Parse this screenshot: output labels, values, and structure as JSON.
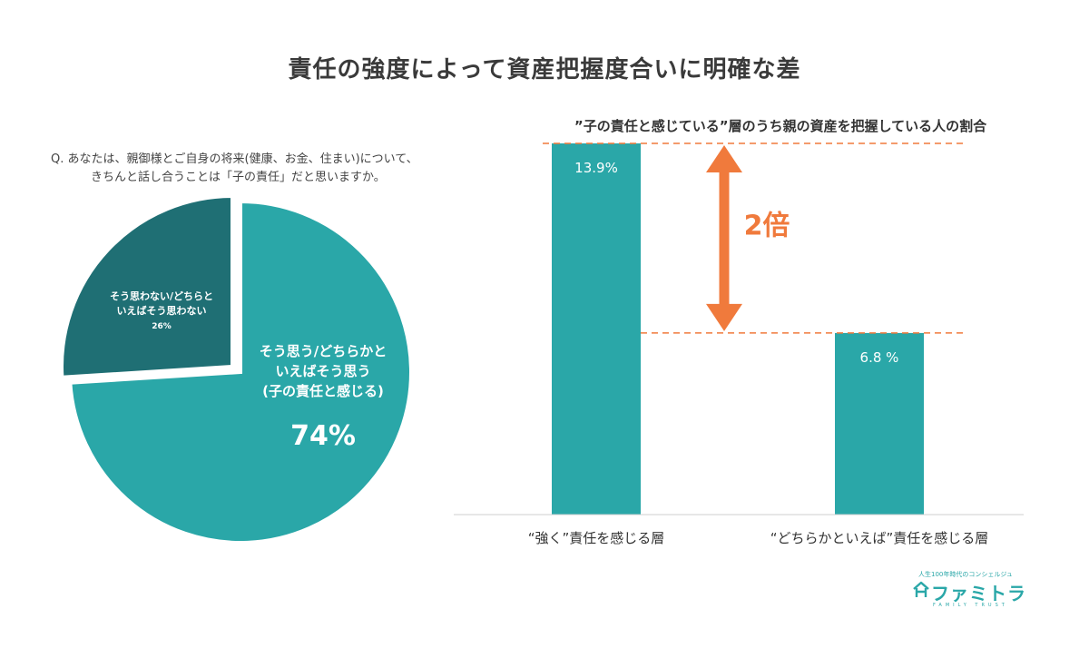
{
  "title": "責任の強度によって資産把握度合いに明確な差",
  "question": {
    "line1": "Q. あなたは、親御様とご自身の将来(健康、お金、住まい)について、",
    "line2": "きちんと話し合うことは「子の責任」だと思いますか。"
  },
  "logo": {
    "tagline": "人生100年時代のコンシェルジュ",
    "name": "ファミトラ",
    "sub": "FAMILY TRUST"
  },
  "colors": {
    "pie_main": "#2aa7a8",
    "pie_other": "#1f6f74",
    "bar": "#2aa7a8",
    "accent": "#f07a3c"
  },
  "chart_data": [
    {
      "type": "pie",
      "slices": [
        {
          "label_lines": [
            "そう思う/どちらかと",
            "いえばそう思う",
            "(子の責任と感じる)"
          ],
          "value_label": "74%",
          "value": 74
        },
        {
          "label_lines": [
            "そう思わない/どちらと",
            "いえばそう思わない"
          ],
          "value_label": "26%",
          "value": 26
        }
      ]
    },
    {
      "type": "bar",
      "title": "”子の責任と感じている”層のうち親の資産を把握している人の割合",
      "categories": [
        "“強く”責任を感じる層",
        "“どちらかといえば”責任を感じる層"
      ],
      "values": [
        13.9,
        6.8
      ],
      "value_labels": [
        "13.9%",
        "6.8 %"
      ],
      "annotation": "2倍",
      "ylim": [
        0,
        13.9
      ]
    }
  ]
}
